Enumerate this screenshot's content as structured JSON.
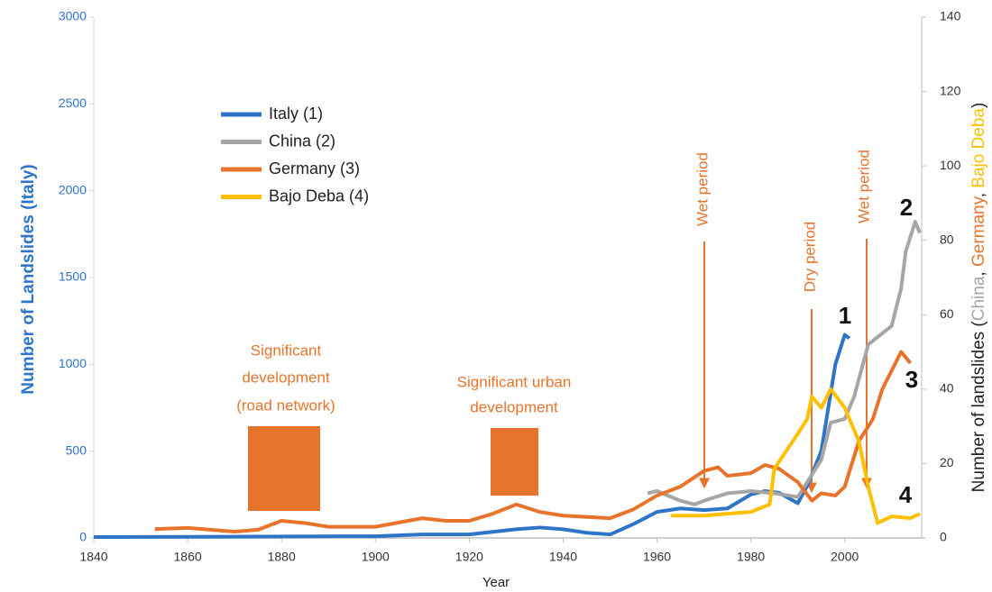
{
  "chart_data": {
    "type": "line",
    "xlabel": "Year",
    "ylabel": "Number of Landslides (Italy)",
    "y2label": [
      {
        "text": "Number of landslides (",
        "color": "#222222"
      },
      {
        "text": "China",
        "color": "#a6a6a6"
      },
      {
        "text": ", ",
        "color": "#222222"
      },
      {
        "text": "Germany",
        "color": "#e8742c"
      },
      {
        "text": ", ",
        "color": "#222222"
      },
      {
        "text": "Bajo Deba",
        "color": "#ffc000"
      },
      {
        "text": ")",
        "color": "#222222"
      }
    ],
    "xlim": [
      1840,
      2016
    ],
    "xticks": [
      1840,
      1860,
      1880,
      1900,
      1920,
      1940,
      1960,
      1980,
      2000
    ],
    "ylim": [
      0,
      3000
    ],
    "yticks": [
      0,
      500,
      1000,
      1500,
      2000,
      2500,
      3000
    ],
    "y2lim": [
      0,
      140
    ],
    "y2ticks": [
      0,
      20,
      40,
      60,
      80,
      100,
      120,
      140
    ],
    "series": [
      {
        "name": "Italy (1)",
        "color": "#2e75c8",
        "axis": "y",
        "x": [
          1840,
          1900,
          1910,
          1920,
          1930,
          1935,
          1940,
          1945,
          1950,
          1955,
          1960,
          1965,
          1970,
          1975,
          1980,
          1983,
          1986,
          1990,
          1992,
          1995,
          1998,
          2000,
          2001
        ],
        "values": [
          5,
          10,
          20,
          20,
          50,
          60,
          50,
          30,
          20,
          80,
          150,
          170,
          160,
          170,
          250,
          270,
          260,
          200,
          300,
          500,
          1000,
          1170,
          1150
        ]
      },
      {
        "name": "China (2)",
        "color": "#a6a6a6",
        "axis": "y2",
        "x": [
          1958,
          1960,
          1965,
          1968,
          1970,
          1975,
          1980,
          1985,
          1990,
          1992,
          1995,
          1997,
          2000,
          2002,
          2005,
          2008,
          2010,
          2012,
          2013,
          2015,
          2016
        ],
        "values": [
          12,
          12.6,
          10,
          9,
          10,
          12,
          12.6,
          12,
          11,
          15,
          21,
          31,
          32,
          38,
          52,
          55,
          57,
          67,
          77,
          85,
          82
        ]
      },
      {
        "name": "Germany (3)",
        "color": "#e8742c",
        "axis": "y2",
        "x": [
          1853,
          1860,
          1870,
          1875,
          1880,
          1885,
          1890,
          1900,
          1910,
          1915,
          1920,
          1925,
          1930,
          1935,
          1940,
          1950,
          1955,
          1960,
          1965,
          1970,
          1973,
          1975,
          1980,
          1983,
          1986,
          1990,
          1993,
          1995,
          1998,
          2000,
          2003,
          2006,
          2008,
          2010,
          2012,
          2014
        ],
        "values": [
          2.4,
          2.7,
          1.7,
          2.2,
          4.6,
          4,
          3,
          3,
          5.3,
          4.6,
          4.6,
          6.5,
          9,
          7,
          6,
          5.3,
          7.7,
          11.4,
          13.8,
          18,
          19,
          16.7,
          17.4,
          19.6,
          18.6,
          15,
          10,
          12,
          11.4,
          13.8,
          26,
          32,
          40,
          45,
          50,
          47
        ]
      },
      {
        "name": "Bajo Deba (4)",
        "color": "#ffc000",
        "axis": "y2",
        "x": [
          1963,
          1970,
          1975,
          1980,
          1984,
          1985,
          1990,
          1992,
          1993,
          1995,
          1997,
          2000,
          2003,
          2005,
          2007,
          2010,
          2014,
          2016
        ],
        "values": [
          6,
          6,
          6.5,
          7,
          9,
          18.6,
          28,
          32,
          38,
          35,
          40,
          35,
          26,
          13.8,
          4,
          5.8,
          5.3,
          6.5
        ]
      }
    ],
    "annotations": {
      "road": [
        "Significant",
        "development",
        "(road network)"
      ],
      "urban": [
        "Significant urban",
        "development"
      ],
      "wet1": "Wet period",
      "dry": "Dry period",
      "wet2": "Wet period",
      "labels": [
        "1",
        "2",
        "3",
        "4"
      ]
    }
  }
}
